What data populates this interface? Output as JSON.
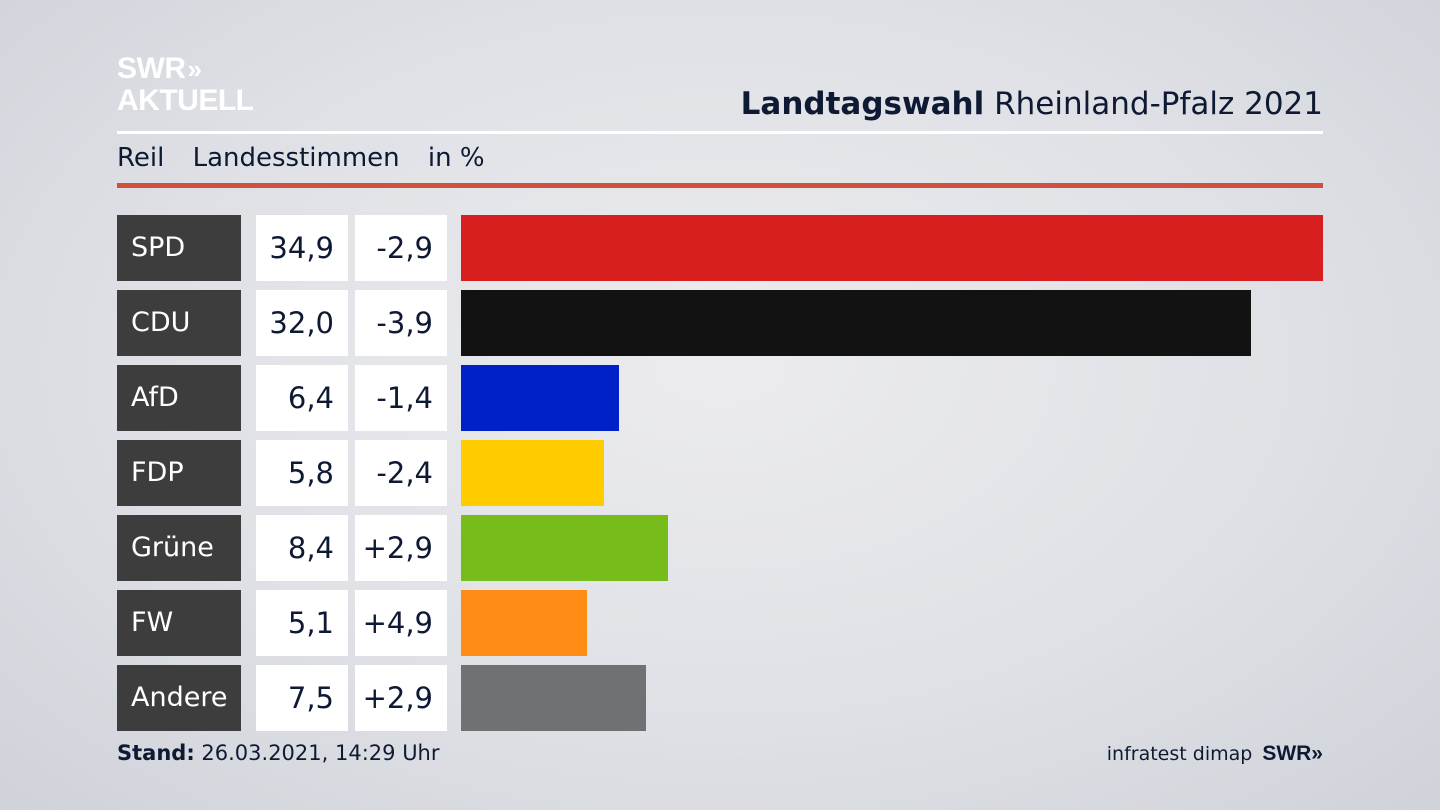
{
  "logo": {
    "line1": "SWR",
    "line1_chevron": "»",
    "line2": "AKTUELL"
  },
  "header": {
    "title_bold": "Landtagswahl",
    "title_rest": "Rheinland-Pfalz 2021"
  },
  "subheader": {
    "region": "Reil",
    "measure": "Landesstimmen",
    "unit": "in %"
  },
  "footer": {
    "stand_label": "Stand:",
    "stand_value": "26.03.2021, 14:29 Uhr",
    "source": "infratest dimap",
    "brand": "SWR»"
  },
  "chart_data": {
    "type": "bar",
    "orientation": "horizontal",
    "categories": [
      "SPD",
      "CDU",
      "AfD",
      "FDP",
      "Grüne",
      "FW",
      "Andere"
    ],
    "values": [
      34.9,
      32.0,
      6.4,
      5.8,
      8.4,
      5.1,
      7.5
    ],
    "value_labels": [
      "34,9",
      "32,0",
      "6,4",
      "5,8",
      "8,4",
      "5,1",
      "7,5"
    ],
    "change_labels": [
      "-2,9",
      "-3,9",
      "-1,4",
      "-2,4",
      "+2,9",
      "+4,9",
      "+2,9"
    ],
    "colors": [
      "#d71f1f",
      "#121212",
      "#0021c8",
      "#ffcc00",
      "#78bc1c",
      "#ff8c14",
      "#707173"
    ],
    "xlim": [
      0,
      34.9
    ]
  }
}
